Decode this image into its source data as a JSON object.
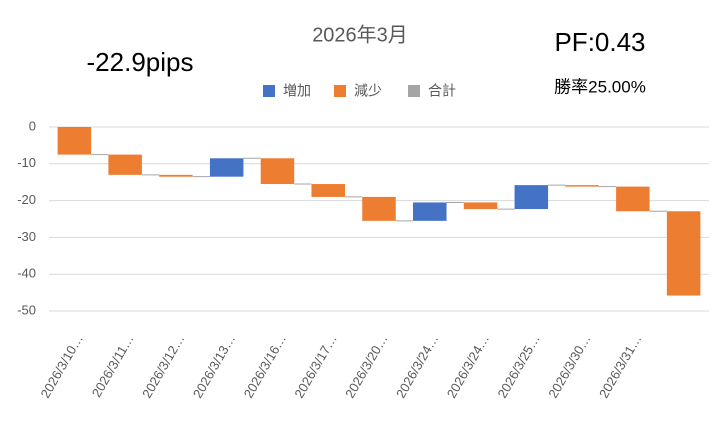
{
  "chart_data": {
    "type": "waterfall",
    "title": "2026年3月",
    "annotations": [
      "-22.9pips",
      "PF:0.43",
      "勝率25.00%"
    ],
    "categories": [
      "2026/3/10…",
      "2026/3/11…",
      "2026/3/12…",
      "2026/3/13…",
      "2026/3/16…",
      "2026/3/17…",
      "2026/3/20…",
      "2026/3/24…",
      "2026/3/24…",
      "2026/3/25…",
      "2026/3/30…",
      "2026/3/31…",
      null
    ],
    "values": [
      -7.5,
      -5.5,
      -0.5,
      5,
      -7,
      -3.5,
      -6.5,
      5,
      -1.8,
      6.5,
      -0.4,
      -6.7,
      -22.9
    ],
    "series": [
      {
        "name": "増加",
        "color": "#4472c4"
      },
      {
        "name": "減少",
        "color": "#ed7d31"
      },
      {
        "name": "合計",
        "color": "#a5a5a5"
      }
    ],
    "ylim": [
      -50,
      0
    ],
    "yticks": [
      0,
      -10,
      -20,
      -30,
      -40,
      -50
    ],
    "grid": true
  }
}
